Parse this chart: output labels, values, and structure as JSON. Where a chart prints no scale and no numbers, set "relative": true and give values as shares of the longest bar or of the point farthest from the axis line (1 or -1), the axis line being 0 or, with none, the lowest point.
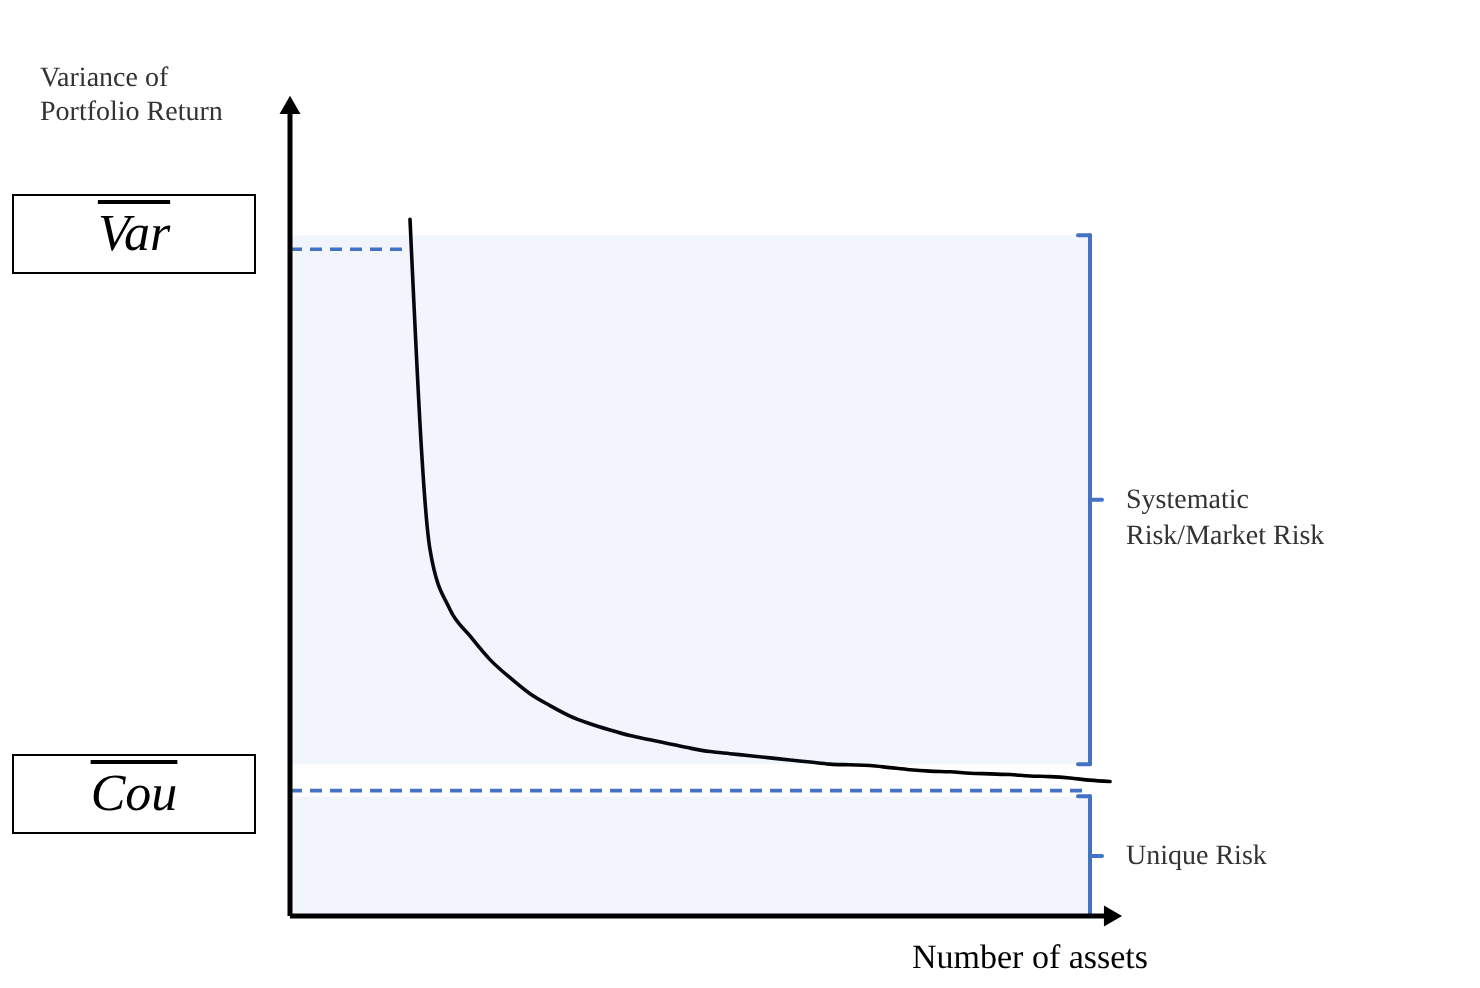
{
  "chart_data": {
    "type": "line",
    "relative": true,
    "xlabel": "Number of assets",
    "ylabel": "Variance of Portfolio Return",
    "categories": [
      null,
      null,
      null,
      null,
      null,
      null,
      null,
      null,
      null,
      null,
      null,
      null,
      null,
      null,
      null,
      null,
      null,
      null,
      null,
      null,
      null,
      null,
      null,
      null,
      null,
      null,
      null,
      null,
      null,
      null,
      null,
      null,
      null,
      null,
      null,
      null,
      null,
      null,
      null,
      null,
      null,
      null
    ],
    "series": [
      {
        "color": "#000000",
        "values": [
          null,
          null,
          null,
          null,
          null,
          null,
          1.0,
          0.526,
          0.44,
          0.402,
          0.368,
          0.342,
          0.319,
          0.302,
          0.287,
          0.276,
          0.267,
          0.259,
          0.253,
          0.247,
          0.241,
          0.236,
          0.233,
          0.23,
          0.227,
          0.224,
          0.221,
          0.218,
          0.217,
          0.216,
          0.213,
          0.21,
          0.208,
          0.207,
          0.205,
          0.204,
          0.203,
          0.201,
          0.2,
          0.198,
          0.195,
          0.193
        ]
      }
    ],
    "ref_lines": [
      {
        "axis": "y",
        "value": 0.957,
        "label": "Var",
        "color": "#4472c4",
        "line_style": "dashed"
      },
      {
        "axis": "y",
        "value": 0.18,
        "label": "Cou",
        "color": "#4472c4",
        "line_style": "dashed"
      }
    ],
    "bands": [
      {
        "axis": "y",
        "from": 0.218,
        "to": 0.977,
        "label": "Systematic Risk/Market Risk",
        "color": "#4472c4"
      },
      {
        "axis": "y",
        "from": 0,
        "to": 0.172,
        "label": "Unique Risk",
        "color": "#4472c4"
      }
    ]
  }
}
